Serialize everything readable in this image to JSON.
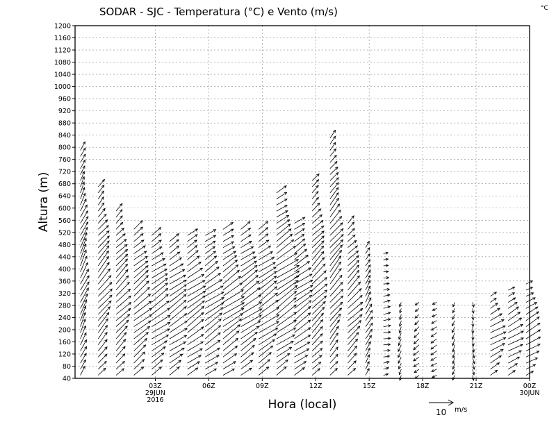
{
  "chart_data": {
    "type": "wind-barb",
    "title": "SODAR - SJC - Temperatura (°C) e Vento (m/s)",
    "corner_unit": "°C",
    "xlabel": "Hora (local)",
    "ylabel": "Altura (m)",
    "ylim": [
      40,
      1200
    ],
    "y_ticks": [
      40,
      80,
      120,
      160,
      200,
      240,
      280,
      320,
      360,
      400,
      440,
      480,
      520,
      560,
      600,
      640,
      680,
      720,
      760,
      800,
      840,
      880,
      920,
      960,
      1000,
      1040,
      1080,
      1120,
      1160,
      1200
    ],
    "xlim_hours": [
      -1.5,
      24
    ],
    "x_ticks": [
      {
        "hour": 3,
        "label": "03Z",
        "sub1": "29JUN",
        "sub2": "2016"
      },
      {
        "hour": 6,
        "label": "06Z"
      },
      {
        "hour": 9,
        "label": "09Z"
      },
      {
        "hour": 12,
        "label": "12Z"
      },
      {
        "hour": 15,
        "label": "15Z"
      },
      {
        "hour": 18,
        "label": "18Z"
      },
      {
        "hour": 21,
        "label": "21Z"
      },
      {
        "hour": 24,
        "label": "00Z",
        "sub1": "30JUN"
      }
    ],
    "reference_vector": {
      "value": "10",
      "unit": "m/s",
      "speed": 10
    },
    "grid": true,
    "wind_columns": [
      {
        "hour": -1.2,
        "top": 800,
        "speed_low": 4,
        "speed_high": 7,
        "dir_deg": 25
      },
      {
        "hour": -0.2,
        "top": 680,
        "speed_low": 4,
        "speed_high": 8,
        "dir_deg": 40
      },
      {
        "hour": 0.8,
        "top": 600,
        "speed_low": 4,
        "speed_high": 8,
        "dir_deg": 45
      },
      {
        "hour": 1.8,
        "top": 540,
        "speed_low": 5,
        "speed_high": 9,
        "dir_deg": 50
      },
      {
        "hour": 2.8,
        "top": 510,
        "speed_low": 5,
        "speed_high": 9,
        "dir_deg": 55
      },
      {
        "hour": 3.8,
        "top": 500,
        "speed_low": 5,
        "speed_high": 9,
        "dir_deg": 55
      },
      {
        "hour": 4.8,
        "top": 520,
        "speed_low": 5,
        "speed_high": 9,
        "dir_deg": 55
      },
      {
        "hour": 5.8,
        "top": 510,
        "speed_low": 5,
        "speed_high": 9,
        "dir_deg": 55
      },
      {
        "hour": 6.8,
        "top": 530,
        "speed_low": 5,
        "speed_high": 10,
        "dir_deg": 55
      },
      {
        "hour": 7.8,
        "top": 540,
        "speed_low": 5,
        "speed_high": 10,
        "dir_deg": 55
      },
      {
        "hour": 8.8,
        "top": 540,
        "speed_low": 5,
        "speed_high": 10,
        "dir_deg": 55
      },
      {
        "hour": 9.8,
        "top": 660,
        "speed_low": 5,
        "speed_high": 11,
        "dir_deg": 55
      },
      {
        "hour": 10.8,
        "top": 560,
        "speed_low": 5,
        "speed_high": 9,
        "dir_deg": 55
      },
      {
        "hour": 11.8,
        "top": 700,
        "speed_low": 4,
        "speed_high": 8,
        "dir_deg": 45
      },
      {
        "hour": 12.8,
        "top": 840,
        "speed_low": 4,
        "speed_high": 8,
        "dir_deg": 40
      },
      {
        "hour": 13.8,
        "top": 560,
        "speed_low": 4,
        "speed_high": 8,
        "dir_deg": 45
      },
      {
        "hour": 14.8,
        "top": 480,
        "speed_low": 3,
        "speed_high": 5,
        "dir_deg": 30
      },
      {
        "hour": 15.8,
        "top": 450,
        "speed_low": 2,
        "speed_high": 3,
        "dir_deg": 80
      },
      {
        "hour": 16.8,
        "top": 300,
        "speed_low": 2,
        "speed_high": 3,
        "dir_deg": 200
      },
      {
        "hour": 17.8,
        "top": 300,
        "speed_low": 2,
        "speed_high": 3,
        "dir_deg": 230
      },
      {
        "hour": 18.8,
        "top": 300,
        "speed_low": 2,
        "speed_high": 3,
        "dir_deg": 240
      },
      {
        "hour": 19.8,
        "top": 300,
        "speed_low": 2,
        "speed_high": 3,
        "dir_deg": 200
      },
      {
        "hour": 20.8,
        "top": 300,
        "speed_low": 2,
        "speed_high": 3,
        "dir_deg": 170
      },
      {
        "hour": 21.8,
        "top": 320,
        "speed_low": 3,
        "speed_high": 7,
        "dir_deg": 60
      },
      {
        "hour": 22.8,
        "top": 340,
        "speed_low": 3,
        "speed_high": 7,
        "dir_deg": 60
      },
      {
        "hour": 23.8,
        "top": 360,
        "speed_low": 3,
        "speed_high": 7,
        "dir_deg": 60
      }
    ]
  }
}
